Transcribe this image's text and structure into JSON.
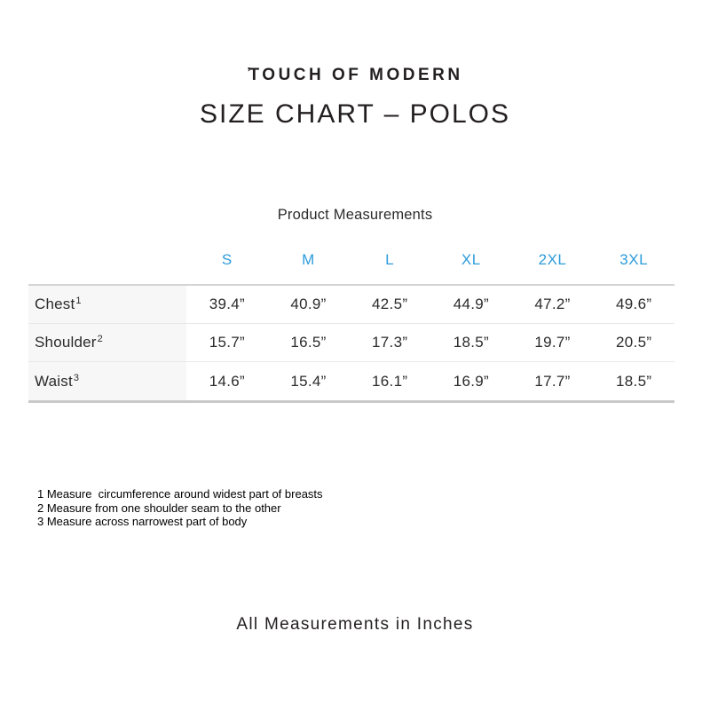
{
  "brand": {
    "tick": "’",
    "name": "TOUCH OF MODERN"
  },
  "header": {
    "title": "SIZE CHART – POLOS"
  },
  "table": {
    "title": "Product Measurements",
    "columns": [
      "S",
      "M",
      "L",
      "XL",
      "2XL",
      "3XL"
    ],
    "rows": [
      {
        "label": "Chest",
        "footnote_ref": "1",
        "values": [
          "39.4”",
          "40.9”",
          "42.5”",
          "44.9”",
          "47.2”",
          "49.6”"
        ]
      },
      {
        "label": "Shoulder",
        "footnote_ref": "2",
        "values": [
          "15.7”",
          "16.5”",
          "17.3”",
          "18.5”",
          "19.7”",
          "20.5”"
        ]
      },
      {
        "label": "Waist",
        "footnote_ref": "3",
        "values": [
          "14.6”",
          "15.4”",
          "16.1”",
          "16.9”",
          "17.7”",
          "18.5”"
        ]
      }
    ]
  },
  "footnotes": [
    "1 Measure  circumference around widest part of breasts",
    "2 Measure from one shoulder seam to the other",
    "3 Measure across narrowest part of body"
  ],
  "footer": {
    "note": "All Measurements in Inches"
  },
  "colors": {
    "accent_blue": "#2D9CDB",
    "label_column_bg": "#f7f7f7",
    "row_divider": "#e8e8e8",
    "table_top_border": "#d4d4d4",
    "table_bottom_border": "#c9c9c9",
    "text": "#231f20",
    "background": "#ffffff"
  },
  "chart_data": {
    "type": "table",
    "title": "Product Measurements",
    "columns": [
      "S",
      "M",
      "L",
      "XL",
      "2XL",
      "3XL"
    ],
    "rows": [
      {
        "label": "Chest",
        "values": [
          39.4,
          40.9,
          42.5,
          44.9,
          47.2,
          49.6
        ]
      },
      {
        "label": "Shoulder",
        "values": [
          15.7,
          16.5,
          17.3,
          18.5,
          19.7,
          20.5
        ]
      },
      {
        "label": "Waist",
        "values": [
          14.6,
          15.4,
          16.1,
          16.9,
          17.7,
          18.5
        ]
      }
    ],
    "units": "inches",
    "notes": [
      "1 Measure circumference around widest part of breasts",
      "2 Measure from one shoulder seam to the other",
      "3 Measure across narrowest part of body",
      "All Measurements in Inches"
    ]
  }
}
